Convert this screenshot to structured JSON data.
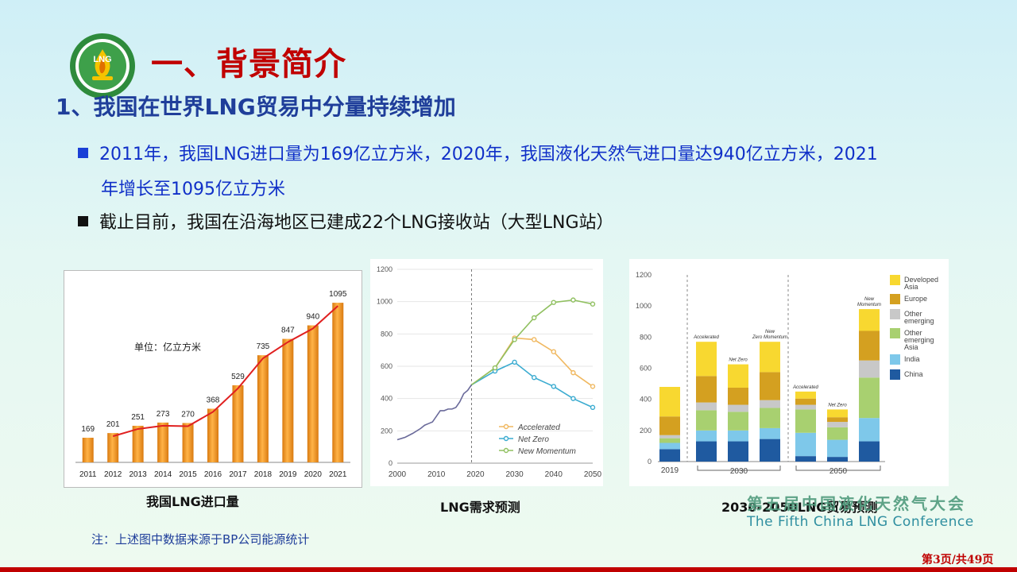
{
  "slide": {
    "title": "一、背景简介",
    "subtitle": "1、我国在世界LNG贸易中分量持续增加",
    "bullets": [
      {
        "line1": "2011年，我国LNG进口量为169亿立方米，2020年，我国液化天然气进口量达940亿立方米，2021",
        "line2": "年增长至1095亿立方米"
      },
      {
        "line1": "截止目前，我国在沿海地区已建成22个LNG接收站（大型LNG站）"
      }
    ],
    "captions": [
      "我国LNG进口量",
      "LNG需求预测",
      "2030-2050LNG贸易预测"
    ],
    "logo_text": "LNG",
    "conference_cn": "第五届中国液化天然气大会",
    "conference_en": "The Fifth China LNG Conference",
    "note": "注：上述图中数据来源于BP公司能源统计",
    "page_number": "第3页/共49页"
  },
  "colors": {
    "title": "#c00000",
    "subtitle": "#1f3e9a",
    "bullet_blue": "#1030c8",
    "bar_orange": "#f3961f",
    "trend_red": "#e02020"
  },
  "chart_data": [
    {
      "type": "bar",
      "unit_label": "单位：亿立方米",
      "categories": [
        "2011",
        "2012",
        "2013",
        "2014",
        "2015",
        "2016",
        "2017",
        "2018",
        "2019",
        "2020",
        "2021"
      ],
      "values": [
        169,
        201,
        251,
        273,
        270,
        368,
        529,
        735,
        847,
        940,
        1095
      ],
      "trend_line": true,
      "ylim": [
        0,
        1150
      ]
    },
    {
      "type": "line",
      "xlim": [
        2000,
        2050
      ],
      "ylim": [
        0,
        1200
      ],
      "x_ticks": [
        2000,
        2010,
        2020,
        2030,
        2040,
        2050
      ],
      "y_ticks": [
        0,
        200,
        400,
        600,
        800,
        1000,
        1200
      ],
      "divider_x": 2019,
      "history": {
        "x": [
          2000,
          2002,
          2004,
          2006,
          2007,
          2008,
          2009,
          2010,
          2011,
          2012,
          2013,
          2014,
          2015,
          2016,
          2017,
          2018,
          2019
        ],
        "y": [
          145,
          160,
          185,
          215,
          235,
          245,
          255,
          290,
          325,
          325,
          335,
          335,
          345,
          380,
          430,
          450,
          485
        ]
      },
      "series": [
        {
          "name": "Accelerated",
          "color": "#f0b860",
          "x": [
            2019,
            2025,
            2030,
            2035,
            2040,
            2045,
            2050
          ],
          "y": [
            485,
            590,
            775,
            765,
            690,
            560,
            475
          ]
        },
        {
          "name": "Net Zero",
          "color": "#3aabd0",
          "x": [
            2019,
            2025,
            2030,
            2035,
            2040,
            2045,
            2050
          ],
          "y": [
            485,
            570,
            625,
            530,
            475,
            400,
            345
          ]
        },
        {
          "name": "New Momentum",
          "color": "#90c060",
          "x": [
            2019,
            2025,
            2030,
            2035,
            2040,
            2045,
            2050
          ],
          "y": [
            485,
            590,
            765,
            900,
            995,
            1010,
            985
          ]
        }
      ]
    },
    {
      "type": "bar",
      "stacked": true,
      "ylim": [
        0,
        1200
      ],
      "y_ticks": [
        0,
        200,
        400,
        600,
        800,
        1000,
        1200
      ],
      "groups": [
        {
          "label": "2019",
          "bars": [
            ""
          ]
        },
        {
          "label": "2030",
          "bars": [
            "Accelerated",
            "Net Zero",
            "New Zero Momentum"
          ]
        },
        {
          "label": "2050",
          "bars": [
            "Accelerated",
            "Net Zero",
            "New Momentum"
          ]
        }
      ],
      "series": [
        {
          "name": "China",
          "color": "#1f5aa0",
          "values": [
            80,
            130,
            130,
            145,
            35,
            30,
            130
          ]
        },
        {
          "name": "India",
          "color": "#7ec8ea",
          "values": [
            40,
            70,
            70,
            70,
            150,
            110,
            150
          ]
        },
        {
          "name": "Other emerging Asia",
          "color": "#a8d070",
          "values": [
            30,
            130,
            120,
            130,
            150,
            80,
            260
          ]
        },
        {
          "name": "Other emerging",
          "color": "#c8c8c8",
          "values": [
            20,
            50,
            45,
            50,
            30,
            35,
            110
          ]
        },
        {
          "name": "Europe",
          "color": "#d4a020",
          "values": [
            120,
            170,
            110,
            180,
            40,
            30,
            190
          ]
        },
        {
          "name": "Developed Asia",
          "color": "#f8d830",
          "values": [
            190,
            220,
            150,
            195,
            45,
            50,
            140
          ]
        }
      ]
    }
  ]
}
